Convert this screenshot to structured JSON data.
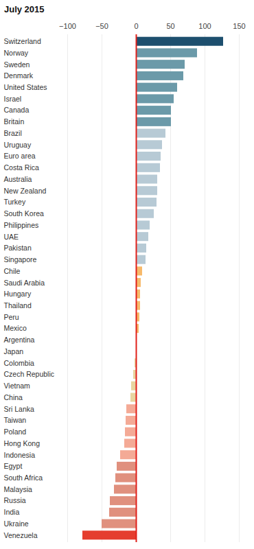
{
  "chart_data": {
    "type": "bar",
    "title": "July 2015",
    "orientation": "horizontal",
    "grid": true,
    "categories": [
      "Switzerland",
      "Norway",
      "Sweden",
      "Denmark",
      "United States",
      "Israel",
      "Canada",
      "Britain",
      "Brazil",
      "Uruguay",
      "Euro area",
      "Costa Rica",
      "Australia",
      "New Zealand",
      "Turkey",
      "South Korea",
      "Philippines",
      "UAE",
      "Pakistan",
      "Singapore",
      "Chile",
      "Saudi Arabia",
      "Hungary",
      "Thailand",
      "Peru",
      "Mexico",
      "Argentina",
      "Japan",
      "Colombia",
      "Czech Republic",
      "Vietnam",
      "China",
      "Sri Lanka",
      "Taiwan",
      "Poland",
      "Hong Kong",
      "Indonesia",
      "Egypt",
      "South Africa",
      "Malaysia",
      "Russia",
      "India",
      "Ukraine",
      "Venezuela"
    ],
    "values": [
      127,
      89,
      71,
      69,
      60,
      55,
      51,
      51,
      43,
      38,
      36,
      35,
      31,
      31,
      30,
      26,
      20,
      18,
      15,
      14,
      9,
      7,
      6,
      6,
      5,
      4,
      1,
      0.5,
      -2,
      -4,
      -7,
      -8,
      -14,
      -15,
      -16,
      -17,
      -23,
      -28,
      -30,
      -32,
      -38,
      -39,
      -50,
      -78
    ],
    "colors": [
      "#1d4f6e",
      "#6b9aa9",
      "#6b9aa9",
      "#6b9aa9",
      "#6b9aa9",
      "#6b9aa9",
      "#6b9aa9",
      "#6b9aa9",
      "#b7cad5",
      "#b7cad5",
      "#b7cad5",
      "#b7cad5",
      "#b7cad5",
      "#b7cad5",
      "#b7cad5",
      "#b7cad5",
      "#b7cad5",
      "#b7cad5",
      "#b7cad5",
      "#b7cad5",
      "#f7b96a",
      "#f7b96a",
      "#f7b96a",
      "#f7b96a",
      "#f7b96a",
      "#f7b96a",
      "#f0c98a",
      "#f0c98a",
      "#e8d5a0",
      "#e8d5a0",
      "#e8d5a0",
      "#e8d5a0",
      "#f4aa96",
      "#f4aa96",
      "#f4aa96",
      "#f4aa96",
      "#f4aa96",
      "#e0907e",
      "#e0907e",
      "#e0907e",
      "#e0907e",
      "#e0907e",
      "#e0907e",
      "#e53e2f"
    ],
    "xlim": [
      -100,
      150
    ],
    "xticks": [
      -100,
      -50,
      0,
      50,
      100,
      150
    ]
  }
}
